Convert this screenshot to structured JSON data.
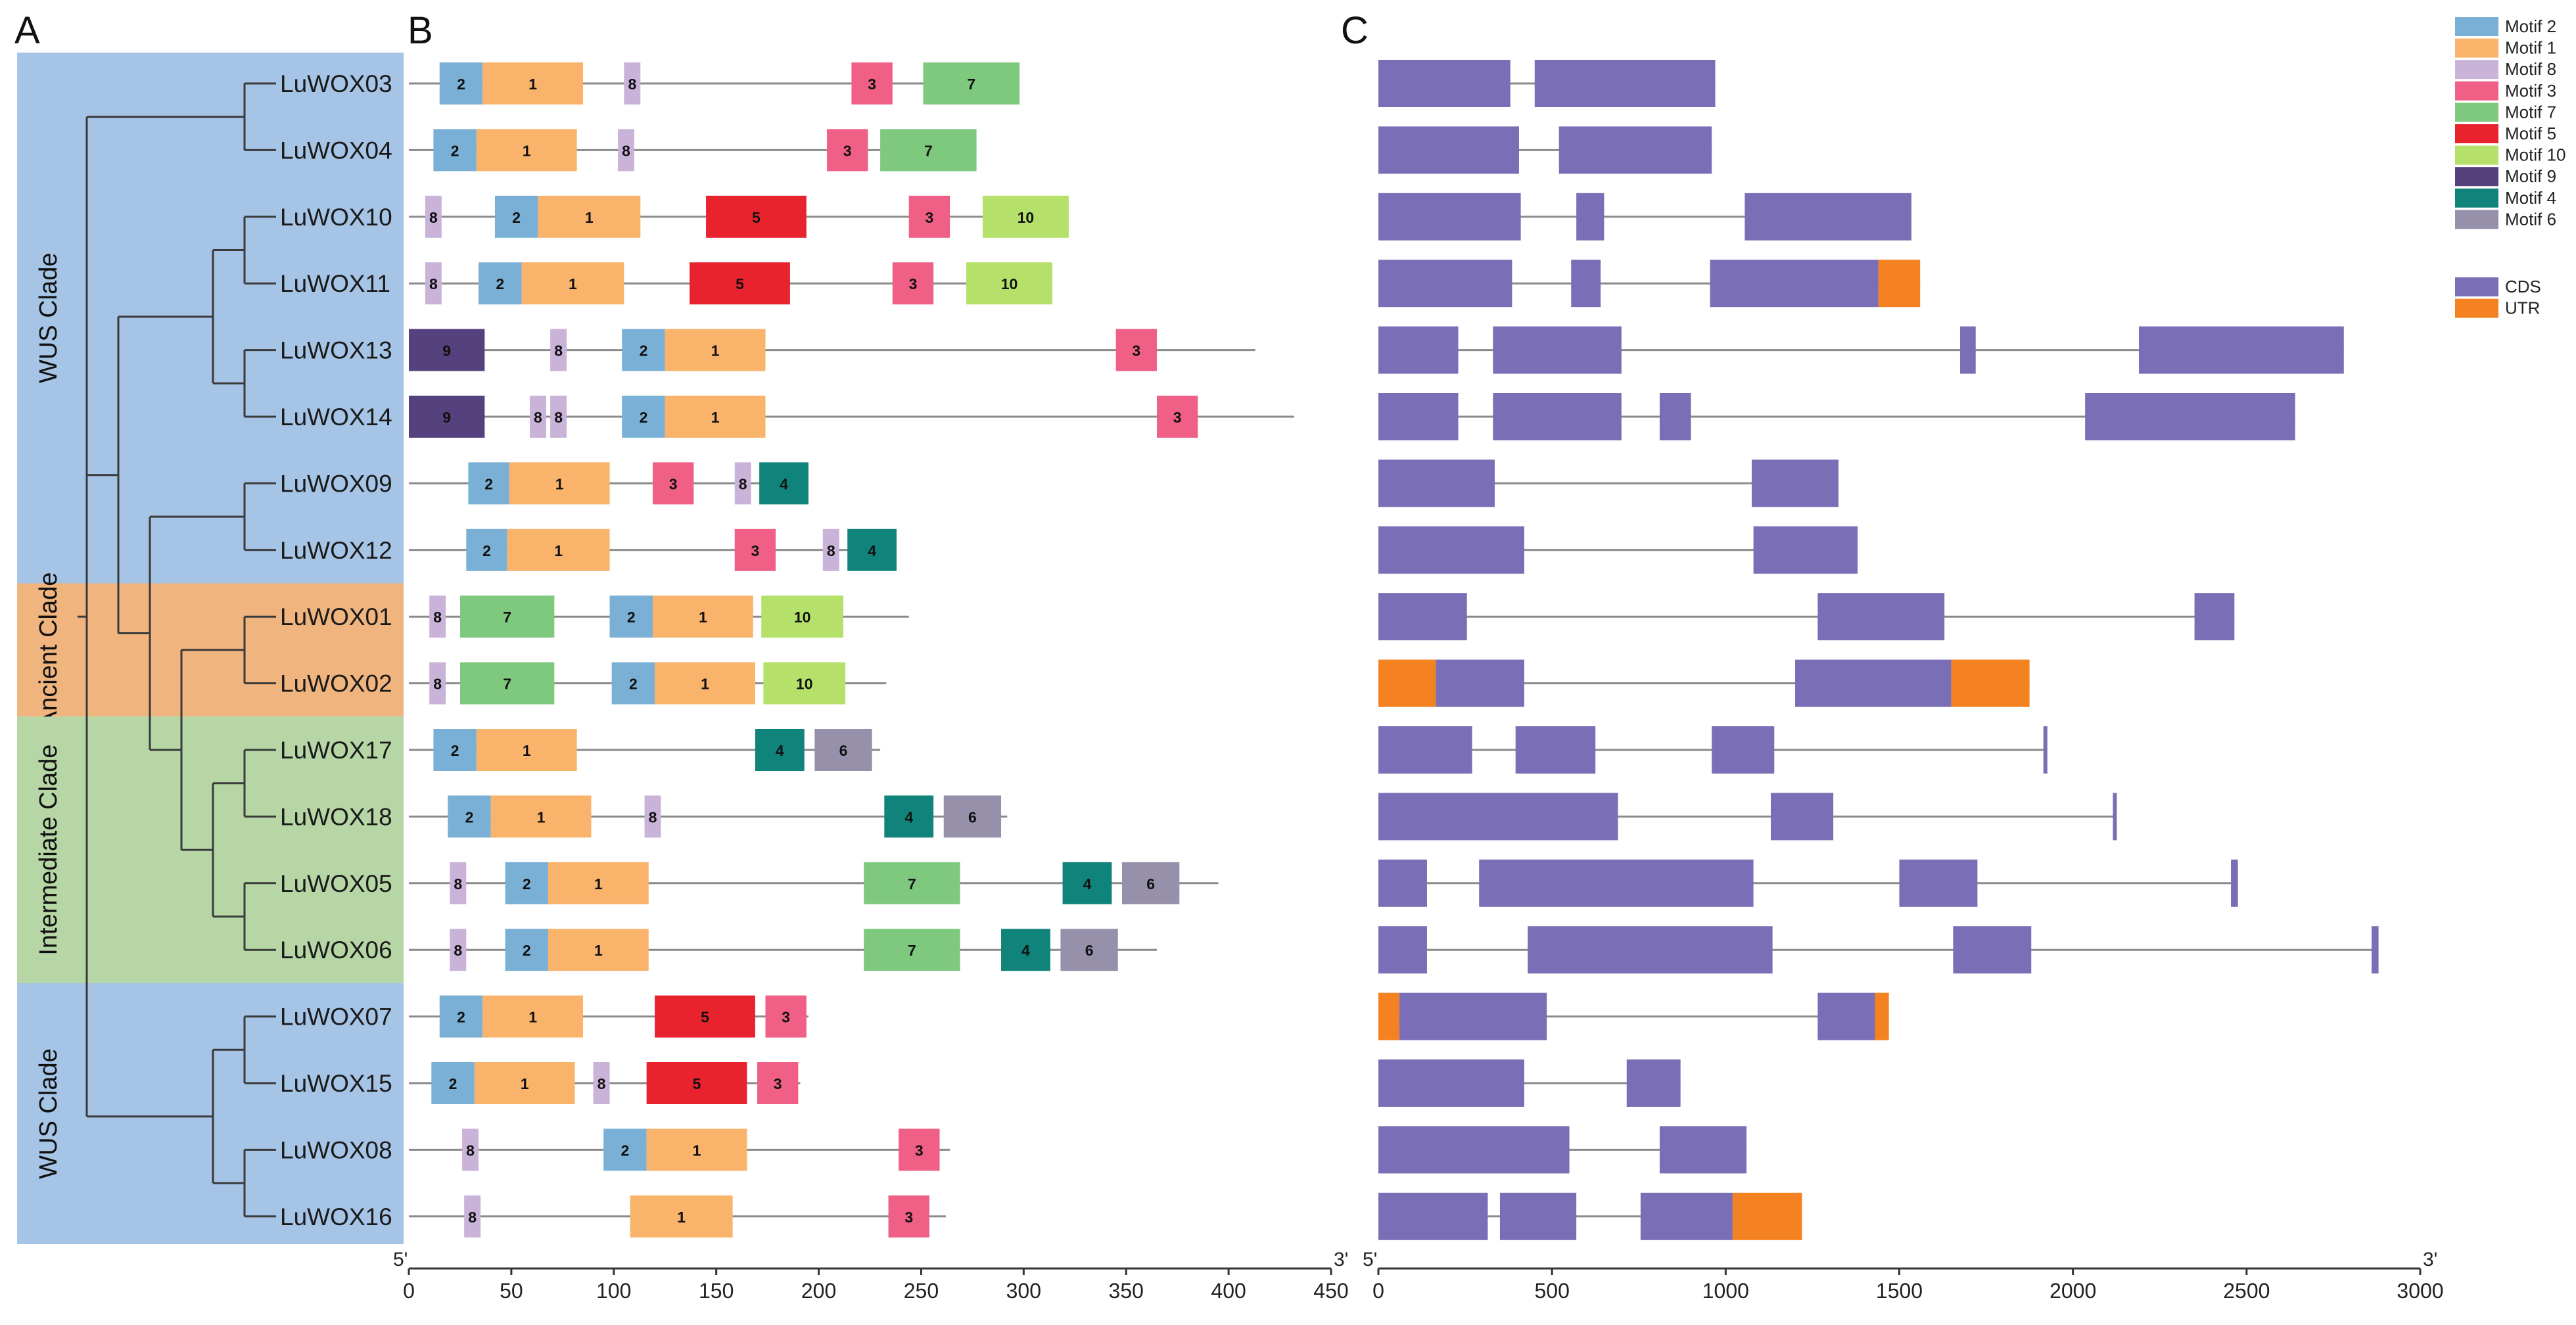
{
  "panel_labels": {
    "a": "A",
    "b": "B",
    "c": "C"
  },
  "clades": [
    {
      "name": "WUS Clade",
      "color": "#a5c4e6",
      "first": 0,
      "last": 7
    },
    {
      "name": "Ancient Clade",
      "color": "#f0b47f",
      "first": 8,
      "last": 9
    },
    {
      "name": "Intermediate Clade",
      "color": "#b6d7a5",
      "first": 10,
      "last": 13
    },
    {
      "name": "WUS Clade",
      "color": "#a5c4e6",
      "first": 14,
      "last": 17
    }
  ],
  "genes": [
    {
      "name": "LuWOX03",
      "protein_length": 298,
      "motifs": [
        [
          "2",
          15,
          36
        ],
        [
          "1",
          36,
          85
        ],
        [
          "8",
          105,
          113
        ],
        [
          "3",
          216,
          236
        ],
        [
          "7",
          251,
          298
        ]
      ],
      "gene_length": 970,
      "cds": [
        [
          0,
          380
        ],
        [
          450,
          970
        ]
      ],
      "utr": []
    },
    {
      "name": "LuWOX04",
      "protein_length": 277,
      "motifs": [
        [
          "2",
          12,
          33
        ],
        [
          "1",
          33,
          82
        ],
        [
          "8",
          102,
          110
        ],
        [
          "3",
          204,
          224
        ],
        [
          "7",
          230,
          277
        ]
      ],
      "gene_length": 960,
      "cds": [
        [
          0,
          405
        ],
        [
          520,
          960
        ]
      ],
      "utr": []
    },
    {
      "name": "LuWOX10",
      "protein_length": 322,
      "motifs": [
        [
          "8",
          8,
          16
        ],
        [
          "2",
          42,
          63
        ],
        [
          "1",
          63,
          113
        ],
        [
          "5",
          145,
          194
        ],
        [
          "3",
          244,
          264
        ],
        [
          "10",
          280,
          322
        ]
      ],
      "gene_length": 1535,
      "cds": [
        [
          0,
          410
        ],
        [
          570,
          650
        ],
        [
          1055,
          1535
        ]
      ],
      "utr": []
    },
    {
      "name": "LuWOX11",
      "protein_length": 314,
      "motifs": [
        [
          "8",
          8,
          16
        ],
        [
          "2",
          34,
          55
        ],
        [
          "1",
          55,
          105
        ],
        [
          "5",
          137,
          186
        ],
        [
          "3",
          236,
          256
        ],
        [
          "10",
          272,
          314
        ]
      ],
      "gene_length": 1560,
      "cds": [
        [
          0,
          385
        ],
        [
          555,
          640
        ],
        [
          955,
          1440
        ]
      ],
      "utr": [
        [
          1440,
          1560
        ]
      ]
    },
    {
      "name": "LuWOX13",
      "protein_length": 413,
      "motifs": [
        [
          "9",
          0,
          37
        ],
        [
          "8",
          69,
          77
        ],
        [
          "2",
          104,
          125
        ],
        [
          "1",
          125,
          174
        ],
        [
          "3",
          345,
          365
        ]
      ],
      "gene_length": 2780,
      "cds": [
        [
          0,
          230
        ],
        [
          330,
          700
        ],
        [
          1675,
          1720
        ],
        [
          2190,
          2780
        ]
      ],
      "utr": []
    },
    {
      "name": "LuWOX14",
      "protein_length": 432,
      "motifs": [
        [
          "9",
          0,
          37
        ],
        [
          "8",
          59,
          67
        ],
        [
          "8",
          69,
          77
        ],
        [
          "2",
          104,
          125
        ],
        [
          "1",
          125,
          174
        ],
        [
          "3",
          365,
          385
        ]
      ],
      "gene_length": 2640,
      "cds": [
        [
          0,
          230
        ],
        [
          330,
          700
        ],
        [
          810,
          900
        ],
        [
          2035,
          2640
        ]
      ],
      "utr": []
    },
    {
      "name": "LuWOX09",
      "protein_length": 195,
      "motifs": [
        [
          "2",
          29,
          49
        ],
        [
          "1",
          49,
          98
        ],
        [
          "3",
          119,
          139
        ],
        [
          "8",
          159,
          167
        ],
        [
          "4",
          171,
          195
        ]
      ],
      "gene_length": 1325,
      "cds": [
        [
          0,
          335
        ],
        [
          1075,
          1325
        ]
      ],
      "utr": []
    },
    {
      "name": "LuWOX12",
      "protein_length": 238,
      "motifs": [
        [
          "2",
          28,
          48
        ],
        [
          "1",
          48,
          98
        ],
        [
          "3",
          159,
          179
        ],
        [
          "8",
          202,
          210
        ],
        [
          "4",
          214,
          238
        ]
      ],
      "gene_length": 1380,
      "cds": [
        [
          0,
          420
        ],
        [
          1080,
          1380
        ]
      ],
      "utr": []
    },
    {
      "name": "LuWOX01",
      "protein_length": 244,
      "motifs": [
        [
          "8",
          10,
          18
        ],
        [
          "7",
          25,
          71
        ],
        [
          "2",
          98,
          119
        ],
        [
          "1",
          119,
          168
        ],
        [
          "10",
          172,
          212
        ]
      ],
      "gene_length": 2465,
      "cds": [
        [
          0,
          255
        ],
        [
          1265,
          1630
        ],
        [
          2350,
          2465
        ]
      ],
      "utr": []
    },
    {
      "name": "LuWOX02",
      "protein_length": 233,
      "motifs": [
        [
          "8",
          10,
          18
        ],
        [
          "7",
          25,
          71
        ],
        [
          "2",
          99,
          120
        ],
        [
          "1",
          120,
          169
        ],
        [
          "10",
          173,
          213
        ]
      ],
      "gene_length": 1875,
      "cds": [
        [
          165,
          420
        ],
        [
          1200,
          1650
        ]
      ],
      "utr": [
        [
          0,
          165
        ],
        [
          1650,
          1875
        ]
      ]
    },
    {
      "name": "LuWOX17",
      "protein_length": 230,
      "motifs": [
        [
          "2",
          12,
          33
        ],
        [
          "1",
          33,
          82
        ],
        [
          "4",
          169,
          193
        ],
        [
          "6",
          198,
          226
        ]
      ],
      "gene_length": 1925,
      "cds": [
        [
          0,
          270
        ],
        [
          395,
          625
        ],
        [
          960,
          1140
        ],
        [
          1915,
          1925
        ]
      ],
      "utr": []
    },
    {
      "name": "LuWOX18",
      "protein_length": 292,
      "motifs": [
        [
          "2",
          19,
          40
        ],
        [
          "1",
          40,
          89
        ],
        [
          "8",
          115,
          123
        ],
        [
          "4",
          232,
          256
        ],
        [
          "6",
          261,
          289
        ]
      ],
      "gene_length": 2125,
      "cds": [
        [
          0,
          690
        ],
        [
          1130,
          1310
        ],
        [
          2115,
          2125
        ]
      ],
      "utr": []
    },
    {
      "name": "LuWOX05",
      "protein_length": 395,
      "motifs": [
        [
          "8",
          20,
          28
        ],
        [
          "2",
          47,
          68
        ],
        [
          "1",
          68,
          117
        ],
        [
          "7",
          222,
          269
        ],
        [
          "4",
          319,
          343
        ],
        [
          "6",
          348,
          376
        ]
      ],
      "gene_length": 2475,
      "cds": [
        [
          0,
          140
        ],
        [
          290,
          1080
        ],
        [
          1500,
          1725
        ],
        [
          2455,
          2475
        ]
      ],
      "utr": []
    },
    {
      "name": "LuWOX06",
      "protein_length": 365,
      "motifs": [
        [
          "8",
          20,
          28
        ],
        [
          "2",
          47,
          68
        ],
        [
          "1",
          68,
          117
        ],
        [
          "7",
          222,
          269
        ],
        [
          "4",
          289,
          313
        ],
        [
          "6",
          318,
          346
        ]
      ],
      "gene_length": 2880,
      "cds": [
        [
          0,
          140
        ],
        [
          430,
          1135
        ],
        [
          1655,
          1880
        ],
        [
          2860,
          2880
        ]
      ],
      "utr": []
    },
    {
      "name": "LuWOX07",
      "protein_length": 195,
      "motifs": [
        [
          "2",
          15,
          36
        ],
        [
          "1",
          36,
          85
        ],
        [
          "5",
          120,
          169
        ],
        [
          "3",
          174,
          194
        ]
      ],
      "gene_length": 1470,
      "cds": [
        [
          60,
          485
        ],
        [
          1265,
          1430
        ]
      ],
      "utr": [
        [
          0,
          60
        ],
        [
          1430,
          1470
        ]
      ]
    },
    {
      "name": "LuWOX15",
      "protein_length": 191,
      "motifs": [
        [
          "2",
          11,
          32
        ],
        [
          "1",
          32,
          81
        ],
        [
          "8",
          90,
          98
        ],
        [
          "5",
          116,
          165
        ],
        [
          "3",
          170,
          190
        ]
      ],
      "gene_length": 870,
      "cds": [
        [
          0,
          420
        ],
        [
          715,
          870
        ]
      ],
      "utr": []
    },
    {
      "name": "LuWOX08",
      "protein_length": 264,
      "motifs": [
        [
          "8",
          26,
          34
        ],
        [
          "2",
          95,
          116
        ],
        [
          "1",
          116,
          165
        ],
        [
          "3",
          239,
          259
        ]
      ],
      "gene_length": 1060,
      "cds": [
        [
          0,
          550
        ],
        [
          810,
          1060
        ]
      ],
      "utr": []
    },
    {
      "name": "LuWOX16",
      "protein_length": 262,
      "motifs": [
        [
          "8",
          27,
          35
        ],
        [
          "1",
          108,
          158
        ],
        [
          "3",
          234,
          254
        ]
      ],
      "gene_length": 1220,
      "cds": [
        [
          0,
          315
        ],
        [
          350,
          570
        ],
        [
          755,
          1020
        ]
      ],
      "utr": [
        [
          1020,
          1220
        ]
      ]
    }
  ],
  "tree": [
    [
      "LuWOX03",
      "LuWOX04"
    ],
    [
      [
        [
          "LuWOX10",
          "LuWOX11"
        ],
        [
          "LuWOX13",
          "LuWOX14"
        ]
      ],
      [
        [
          "LuWOX09",
          "LuWOX12"
        ],
        [
          [
            "LuWOX01",
            "LuWOX02"
          ],
          [
            [
              "LuWOX17",
              "LuWOX18"
            ],
            [
              "LuWOX05",
              "LuWOX06"
            ]
          ]
        ]
      ]
    ],
    [
      [
        "LuWOX07",
        "LuWOX15"
      ],
      [
        "LuWOX08",
        "LuWOX16"
      ]
    ]
  ],
  "motif_colors": {
    "1": "#f9b36b",
    "2": "#7bb0d6",
    "3": "#ef5f86",
    "4": "#10847a",
    "5": "#e8232e",
    "6": "#9690ab",
    "7": "#7fc97f",
    "8": "#c9b3d9",
    "9": "#55417d",
    "10": "#b5e16a"
  },
  "motif_legend": [
    {
      "motif": "2",
      "label": "Motif 2"
    },
    {
      "motif": "1",
      "label": "Motif 1"
    },
    {
      "motif": "8",
      "label": "Motif 8"
    },
    {
      "motif": "3",
      "label": "Motif 3"
    },
    {
      "motif": "7",
      "label": "Motif 7"
    },
    {
      "motif": "5",
      "label": "Motif 5"
    },
    {
      "motif": "10",
      "label": "Motif 10"
    },
    {
      "motif": "9",
      "label": "Motif 9"
    },
    {
      "motif": "4",
      "label": "Motif 4"
    },
    {
      "motif": "6",
      "label": "Motif 6"
    }
  ],
  "structure_legend": [
    {
      "key": "cds",
      "label": "CDS",
      "color": "#7a6fb6"
    },
    {
      "key": "utr",
      "label": "UTR",
      "color": "#f58220"
    }
  ],
  "axis_b": {
    "min": 0,
    "max": 450,
    "ticks": [
      0,
      50,
      100,
      150,
      200,
      250,
      300,
      350,
      400,
      450
    ],
    "start_label": "5'",
    "end_label": "3'"
  },
  "axis_c": {
    "min": 0,
    "max": 3000,
    "ticks": [
      0,
      500,
      1000,
      1500,
      2000,
      2500,
      3000
    ],
    "start_label": "5'",
    "end_label": "3'"
  }
}
